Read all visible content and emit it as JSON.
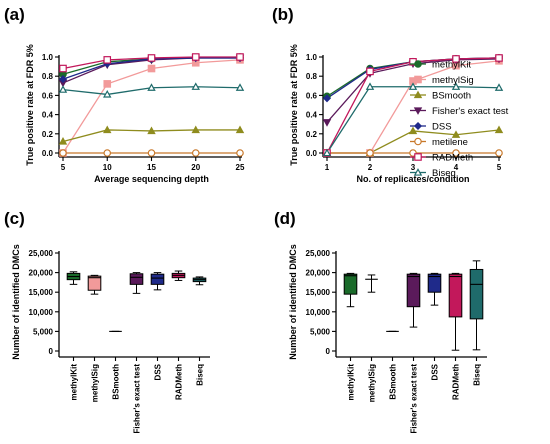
{
  "panels": {
    "a": "(a)",
    "b": "(b)",
    "c": "(c)",
    "d": "(d)"
  },
  "chart_data": [
    {
      "id": "a",
      "type": "line",
      "xlabel": "Average sequencing depth",
      "ylabel": "True positive rate at FDR 5%",
      "x": [
        5,
        10,
        15,
        20,
        25
      ],
      "xlim": [
        5,
        25
      ],
      "ylim": [
        0,
        1.0
      ],
      "xticks": [
        "5",
        "10",
        "15",
        "20",
        "25"
      ],
      "yticks": [
        "0.0",
        "0.2",
        "0.4",
        "0.6",
        "0.8",
        "1.0"
      ],
      "series": [
        {
          "name": "methylKit",
          "color": "#1a6b2a",
          "marker": "circle-filled",
          "values": [
            0.82,
            0.95,
            0.98,
            0.99,
            1.0
          ]
        },
        {
          "name": "methylSig",
          "color": "#f29a9a",
          "marker": "square-filled",
          "values": [
            0.0,
            0.72,
            0.88,
            0.94,
            0.97
          ]
        },
        {
          "name": "BSmooth",
          "color": "#8f8c1e",
          "marker": "triangle-filled",
          "values": [
            0.12,
            0.24,
            0.23,
            0.24,
            0.24
          ]
        },
        {
          "name": "Fisher's exact test",
          "color": "#5b1a5b",
          "marker": "triangle-down-filled",
          "values": [
            0.73,
            0.92,
            0.97,
            0.99,
            0.99
          ]
        },
        {
          "name": "DSS",
          "color": "#1f2a8a",
          "marker": "diamond-filled",
          "values": [
            0.77,
            0.93,
            0.98,
            0.99,
            0.99
          ]
        },
        {
          "name": "metilene",
          "color": "#c8782a",
          "marker": "circle-open",
          "values": [
            0.0,
            0.0,
            0.0,
            0.0,
            0.0
          ]
        },
        {
          "name": "RADMeth",
          "color": "#c2185b",
          "marker": "square-open",
          "values": [
            0.88,
            0.97,
            0.99,
            1.0,
            1.0
          ]
        },
        {
          "name": "Biseq",
          "color": "#1f6b6b",
          "marker": "triangle-open",
          "values": [
            0.66,
            0.61,
            0.68,
            0.69,
            0.68
          ]
        }
      ]
    },
    {
      "id": "b",
      "type": "line",
      "xlabel": "No. of replicates/condition",
      "ylabel": "True positive rate at FDR 5%",
      "x": [
        1,
        2,
        3,
        4,
        5
      ],
      "xlim": [
        1,
        5
      ],
      "ylim": [
        0,
        1.0
      ],
      "xticks": [
        "1",
        "2",
        "3",
        "4",
        "5"
      ],
      "yticks": [
        "0.0",
        "0.2",
        "0.4",
        "0.6",
        "0.8",
        "1.0"
      ],
      "legend_position": "right",
      "series": [
        {
          "name": "methylKit",
          "color": "#1a6b2a",
          "marker": "circle-filled",
          "values": [
            0.59,
            0.88,
            0.95,
            0.98,
            0.99
          ]
        },
        {
          "name": "methylSig",
          "color": "#f29a9a",
          "marker": "square-filled",
          "values": [
            0.0,
            0.0,
            0.75,
            0.91,
            0.96
          ]
        },
        {
          "name": "BSmooth",
          "color": "#8f8c1e",
          "marker": "triangle-filled",
          "values": [
            0.0,
            0.0,
            0.23,
            0.19,
            0.24
          ]
        },
        {
          "name": "Fisher's exact test",
          "color": "#5b1a5b",
          "marker": "triangle-down-filled",
          "values": [
            0.32,
            0.83,
            0.93,
            0.97,
            0.98
          ]
        },
        {
          "name": "DSS",
          "color": "#1f2a8a",
          "marker": "diamond-filled",
          "values": [
            0.57,
            0.87,
            0.95,
            0.98,
            0.99
          ]
        },
        {
          "name": "metilene",
          "color": "#c8782a",
          "marker": "circle-open",
          "values": [
            0.0,
            0.0,
            0.0,
            0.0,
            0.0
          ]
        },
        {
          "name": "RADMeth",
          "color": "#c2185b",
          "marker": "square-open",
          "values": [
            0.0,
            0.85,
            0.95,
            0.98,
            0.99
          ]
        },
        {
          "name": "Biseq",
          "color": "#1f6b6b",
          "marker": "triangle-open",
          "values": [
            0.0,
            0.69,
            0.69,
            0.69,
            0.68
          ]
        }
      ]
    },
    {
      "id": "c",
      "type": "box",
      "ylabel": "Number of identified DMCs",
      "ylim": [
        0,
        25000
      ],
      "yticks": [
        "0",
        "5,000",
        "10,000",
        "15,000",
        "20,000",
        "25,000"
      ],
      "categories": [
        "methylKit",
        "methylSig",
        "BSmooth",
        "Fisher's exact test",
        "DSS",
        "RADMeth",
        "Biseq"
      ],
      "boxes": [
        {
          "color": "#1a6b2a",
          "min": 17000,
          "q1": 18200,
          "median": 19000,
          "q3": 19800,
          "max": 20200
        },
        {
          "color": "#f29a9a",
          "min": 14500,
          "q1": 15500,
          "median": 18700,
          "q3": 19100,
          "max": 19300
        },
        {
          "color": "#8f8c1e",
          "min": 5000,
          "q1": 5000,
          "median": 5000,
          "q3": 5000,
          "max": 5000
        },
        {
          "color": "#5b1a5b",
          "min": 14700,
          "q1": 17000,
          "median": 18800,
          "q3": 19700,
          "max": 20000
        },
        {
          "color": "#1f2a8a",
          "min": 15600,
          "q1": 17000,
          "median": 18600,
          "q3": 19600,
          "max": 20000
        },
        {
          "color": "#c2185b",
          "min": 18000,
          "q1": 18700,
          "median": 19300,
          "q3": 19800,
          "max": 20400
        },
        {
          "color": "#1f6b6b",
          "min": 16900,
          "q1": 17700,
          "median": 18200,
          "q3": 18600,
          "max": 18900
        }
      ]
    },
    {
      "id": "d",
      "type": "box",
      "ylabel": "Number of identified DMCs",
      "ylim": [
        0,
        25000
      ],
      "yticks": [
        "0",
        "5,000",
        "10,000",
        "15,000",
        "20,000",
        "25,000"
      ],
      "categories": [
        "methylKit",
        "methylSig",
        "BSmooth",
        "Fisher's exact test",
        "DSS",
        "RADMeth",
        "Biseq"
      ],
      "boxes": [
        {
          "color": "#1a6b2a",
          "min": 11300,
          "q1": 14500,
          "median": 19200,
          "q3": 19600,
          "max": 19800
        },
        {
          "color": "#f29a9a",
          "min": 15000,
          "q1": 18300,
          "median": 18300,
          "q3": 18300,
          "max": 19400
        },
        {
          "color": "#8f8c1e",
          "min": 5000,
          "q1": 5000,
          "median": 5000,
          "q3": 5000,
          "max": 5000
        },
        {
          "color": "#5b1a5b",
          "min": 6100,
          "q1": 11300,
          "median": 19000,
          "q3": 19600,
          "max": 19800
        },
        {
          "color": "#1f2a8a",
          "min": 11700,
          "q1": 15000,
          "median": 19000,
          "q3": 19600,
          "max": 19800
        },
        {
          "color": "#c2185b",
          "min": 200,
          "q1": 8700,
          "median": 19000,
          "q3": 19600,
          "max": 19800
        },
        {
          "color": "#1f6b6b",
          "min": 300,
          "q1": 8200,
          "median": 17000,
          "q3": 20800,
          "max": 23000
        }
      ]
    }
  ]
}
